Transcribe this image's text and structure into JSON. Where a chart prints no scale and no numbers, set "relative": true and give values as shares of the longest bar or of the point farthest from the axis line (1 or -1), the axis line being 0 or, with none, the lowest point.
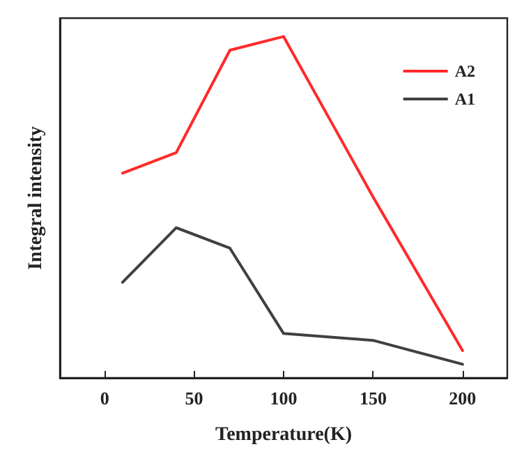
{
  "chart_data": {
    "type": "line",
    "xlabel": "Temperature(K)",
    "ylabel": "Integral intensity",
    "relative": true,
    "x": [
      10,
      40,
      70,
      100,
      150,
      200
    ],
    "xlim": [
      -25,
      225
    ],
    "xticks": [
      0,
      50,
      100,
      150,
      200
    ],
    "series": [
      {
        "name": "A2",
        "color": "#ff2a2a",
        "values": [
          0.6,
          0.66,
          0.96,
          1,
          0.53,
          0.08
        ]
      },
      {
        "name": "A1",
        "color": "#404040",
        "values": [
          0.28,
          0.44,
          0.38,
          0.13,
          0.11,
          0.04
        ]
      }
    ],
    "legend": "top right",
    "grid": false,
    "marker": "none",
    "line_style": "solid"
  }
}
